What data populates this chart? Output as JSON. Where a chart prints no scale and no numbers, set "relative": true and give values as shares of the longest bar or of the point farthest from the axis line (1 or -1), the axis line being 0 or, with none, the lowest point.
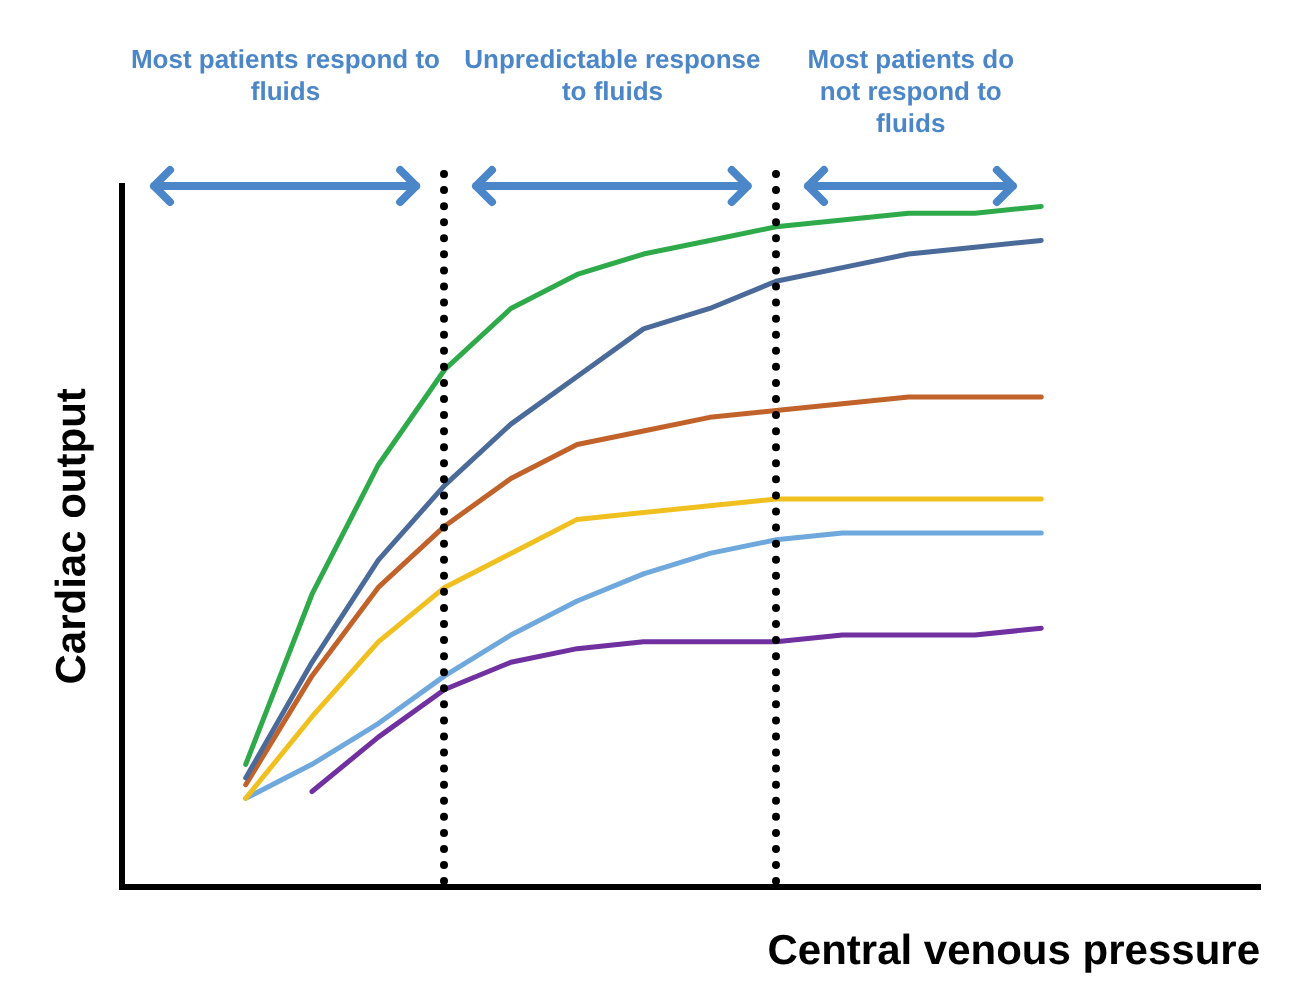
{
  "chart_data": {
    "type": "line",
    "relative": true,
    "xlabel": "Central venous pressure",
    "ylabel": "Cardiac output",
    "categories": [
      null,
      null,
      null,
      null,
      null,
      null,
      null,
      null,
      null,
      null,
      null,
      null,
      null
    ],
    "marker": "none",
    "line_style": "solid",
    "series": [
      {
        "color": "#2eaa4a",
        "values": [
          0.18,
          0.43,
          0.62,
          0.76,
          0.85,
          0.9,
          0.93,
          0.95,
          0.97,
          0.98,
          0.99,
          0.99,
          1
        ]
      },
      {
        "color": "#4a6a9a",
        "values": [
          0.16,
          0.33,
          0.48,
          0.59,
          0.68,
          0.75,
          0.82,
          0.85,
          0.89,
          0.91,
          0.93,
          0.94,
          0.95
        ]
      },
      {
        "color": "#c0622a",
        "values": [
          0.15,
          0.31,
          0.44,
          0.53,
          0.6,
          0.65,
          0.67,
          0.69,
          0.7,
          0.71,
          0.72,
          0.72,
          0.72
        ]
      },
      {
        "color": "#f0c020",
        "values": [
          0.13,
          0.25,
          0.36,
          0.44,
          0.49,
          0.54,
          0.55,
          0.56,
          0.57,
          0.57,
          0.57,
          0.57,
          0.57
        ]
      },
      {
        "color": "#6fa8dc",
        "values": [
          0.13,
          0.18,
          0.24,
          0.31,
          0.37,
          0.42,
          0.46,
          0.49,
          0.51,
          0.52,
          0.52,
          0.52,
          0.52
        ]
      },
      {
        "color": "#7030a0",
        "values": [
          null,
          0.14,
          0.22,
          0.29,
          0.33,
          0.35,
          0.36,
          0.36,
          0.36,
          0.37,
          0.37,
          0.37,
          0.38
        ]
      }
    ],
    "annotations": [
      "Most patients respond to fluids",
      "Unpredictable response to fluids",
      "Most patients do not respond to fluids"
    ]
  }
}
